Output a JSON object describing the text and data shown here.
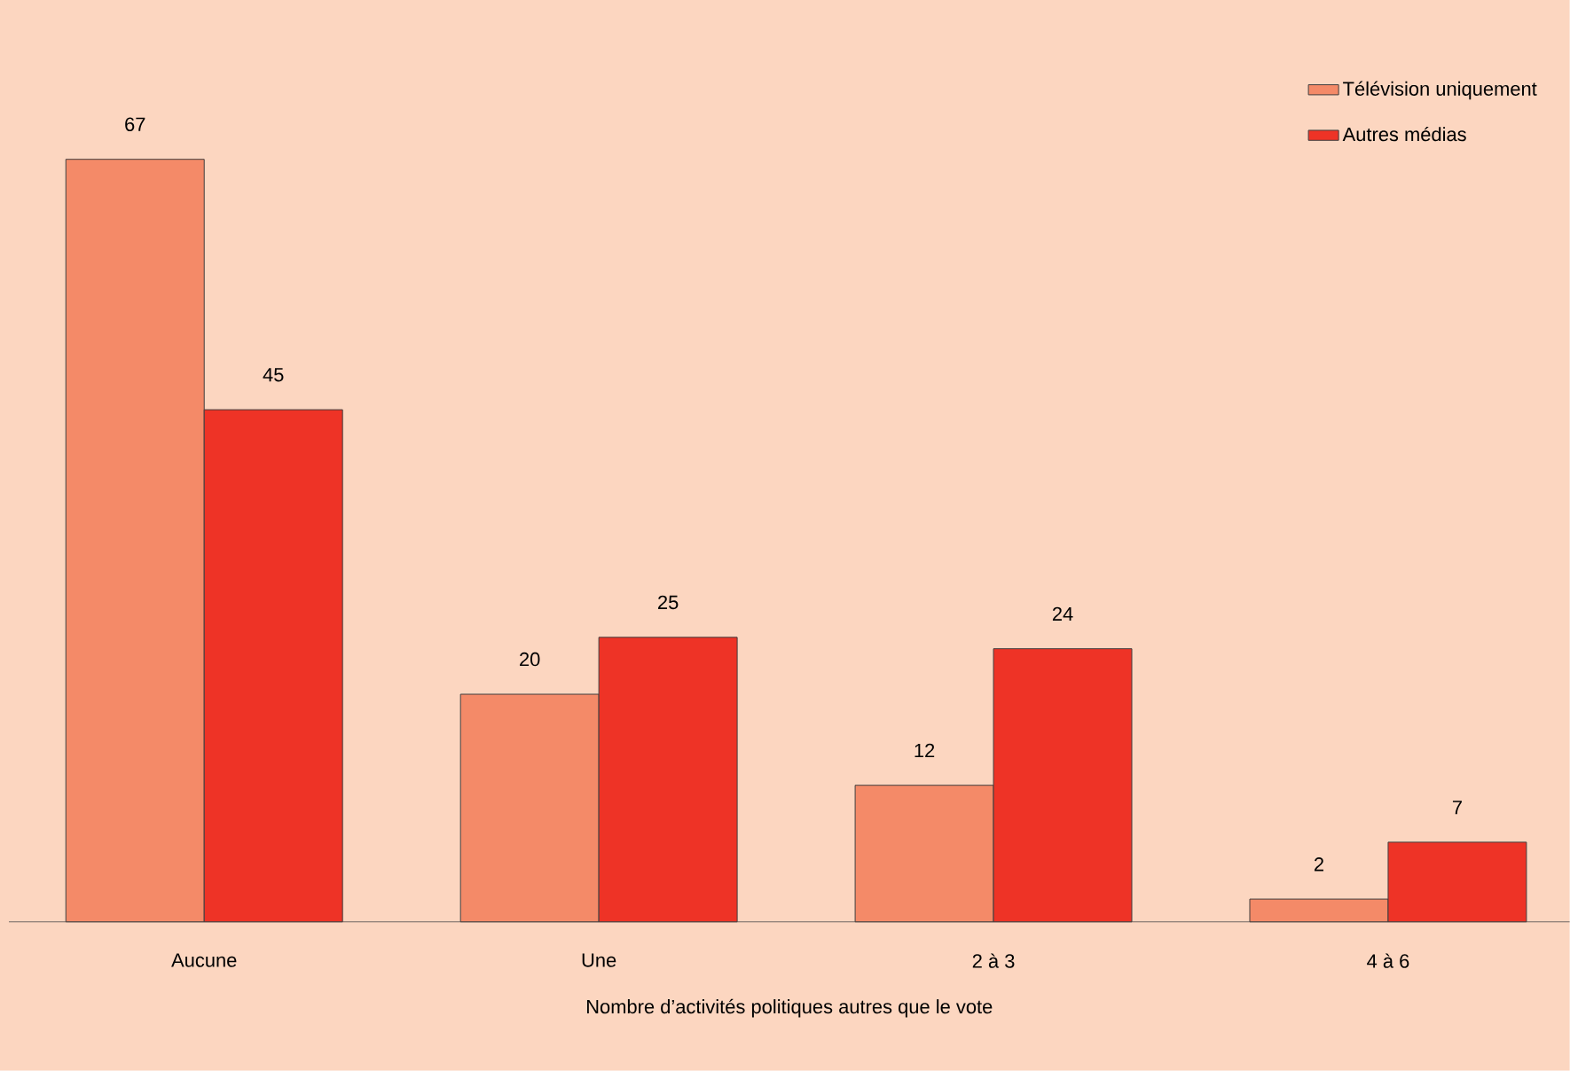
{
  "chart_data": {
    "type": "bar",
    "xlabel": "Nombre d’activités politiques autres que le vote",
    "categories": [
      "Aucune",
      "Une",
      "2 à 3",
      "4 à 6"
    ],
    "series": [
      {
        "name": "Télévision uniquement",
        "color": "#f48a68",
        "values": [
          67,
          20,
          12,
          2
        ]
      },
      {
        "name": "Autres médias",
        "color": "#ee3326",
        "values": [
          45,
          25,
          24,
          7
        ]
      }
    ],
    "ylim": [
      0,
      81
    ],
    "data_labels": true,
    "legend": "top right",
    "tick_labels": "x"
  }
}
